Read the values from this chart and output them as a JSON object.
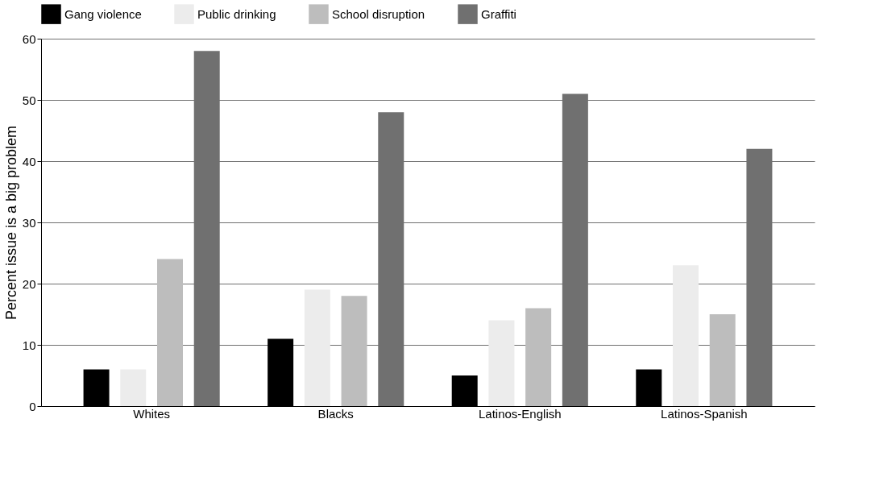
{
  "chart_data": {
    "type": "bar",
    "ylabel": "Percent issue is a big problem",
    "categories": [
      "Whites",
      "Blacks",
      "Latinos-English",
      "Latinos-Spanish"
    ],
    "series": [
      {
        "name": "Gang violence",
        "color": "#000000",
        "values": [
          6,
          11,
          5,
          6
        ]
      },
      {
        "name": "Public drinking",
        "color": "#ececec",
        "values": [
          6,
          19,
          14,
          23
        ]
      },
      {
        "name": "School disruption",
        "color": "#bdbdbd",
        "values": [
          24,
          18,
          16,
          15
        ]
      },
      {
        "name": "Graffiti",
        "color": "#707070",
        "values": [
          58,
          48,
          51,
          42
        ]
      }
    ],
    "ylim": [
      0,
      60
    ],
    "yticks": [
      0,
      10,
      20,
      30,
      40,
      50,
      60
    ],
    "grid": "y",
    "legend": "top"
  }
}
